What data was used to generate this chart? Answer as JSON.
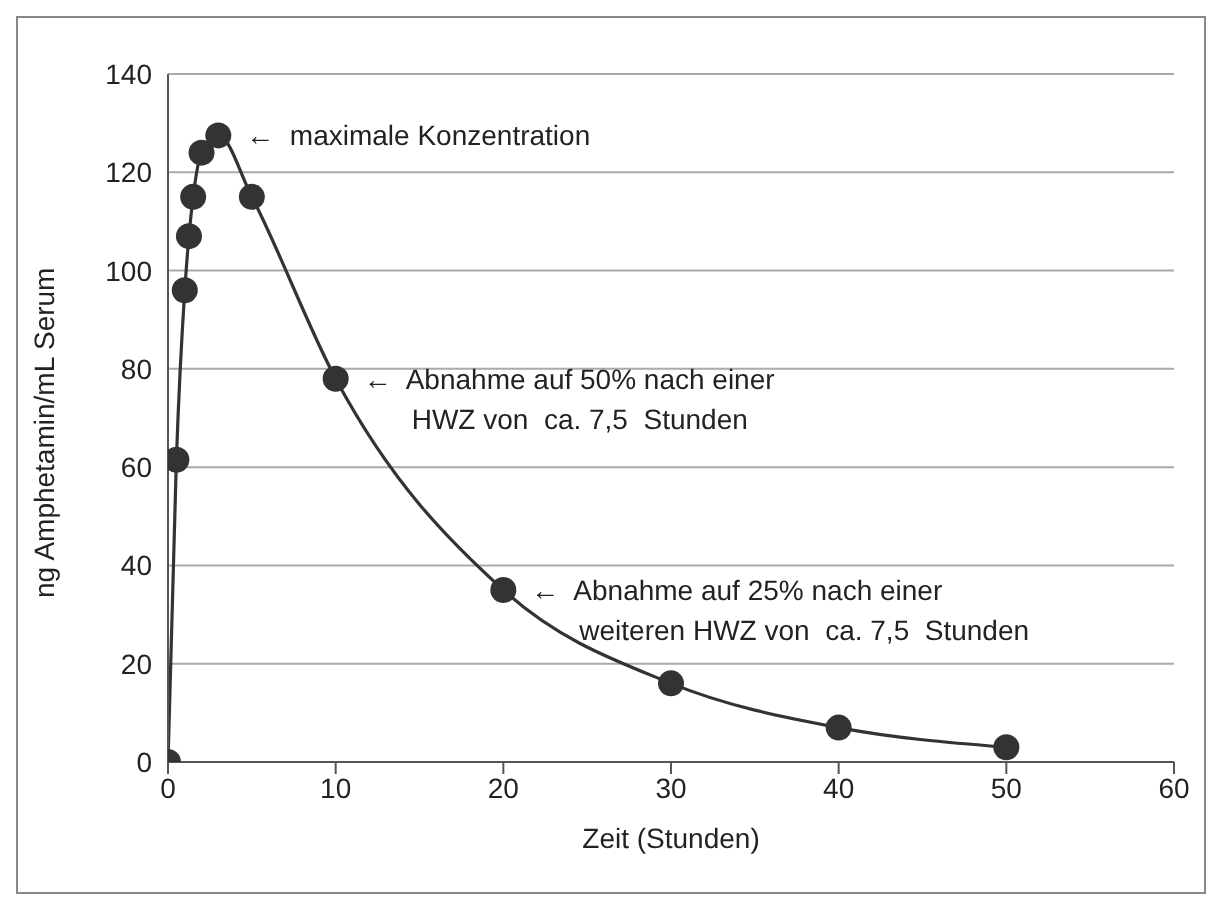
{
  "chart_data": {
    "type": "line",
    "xlabel": "Zeit (Stunden)",
    "ylabel": "ng Amphetamin/mL Serum",
    "x": [
      0,
      0.5,
      1,
      1.25,
      1.5,
      2,
      3,
      5,
      10,
      20,
      30,
      40,
      50
    ],
    "series": [
      {
        "color": "#333333",
        "values": [
          0,
          61.5,
          96,
          107,
          115,
          124,
          127.5,
          115,
          78,
          35,
          16,
          7,
          3
        ]
      }
    ],
    "xlim": [
      0,
      60
    ],
    "xticks": [
      0,
      10,
      20,
      30,
      40,
      50,
      60
    ],
    "ylim": [
      0,
      140
    ],
    "yticks": [
      0,
      20,
      40,
      60,
      80,
      100,
      120,
      140
    ],
    "grid": "y",
    "marker": "circle",
    "line_style": "solid",
    "annotations": [
      {
        "text": "←  maximale Konzentration",
        "x": 3,
        "y": 127.5
      },
      {
        "text": "←  Abnahme auf 50% nach einer\nHWZ von  ca. 7,5  Stunden",
        "x": 10,
        "y": 78
      },
      {
        "text": "←  Abnahme auf 25% nach einer\nweiteren HWZ von  ca. 7,5  Stunden",
        "x": 20,
        "y": 35
      }
    ]
  }
}
